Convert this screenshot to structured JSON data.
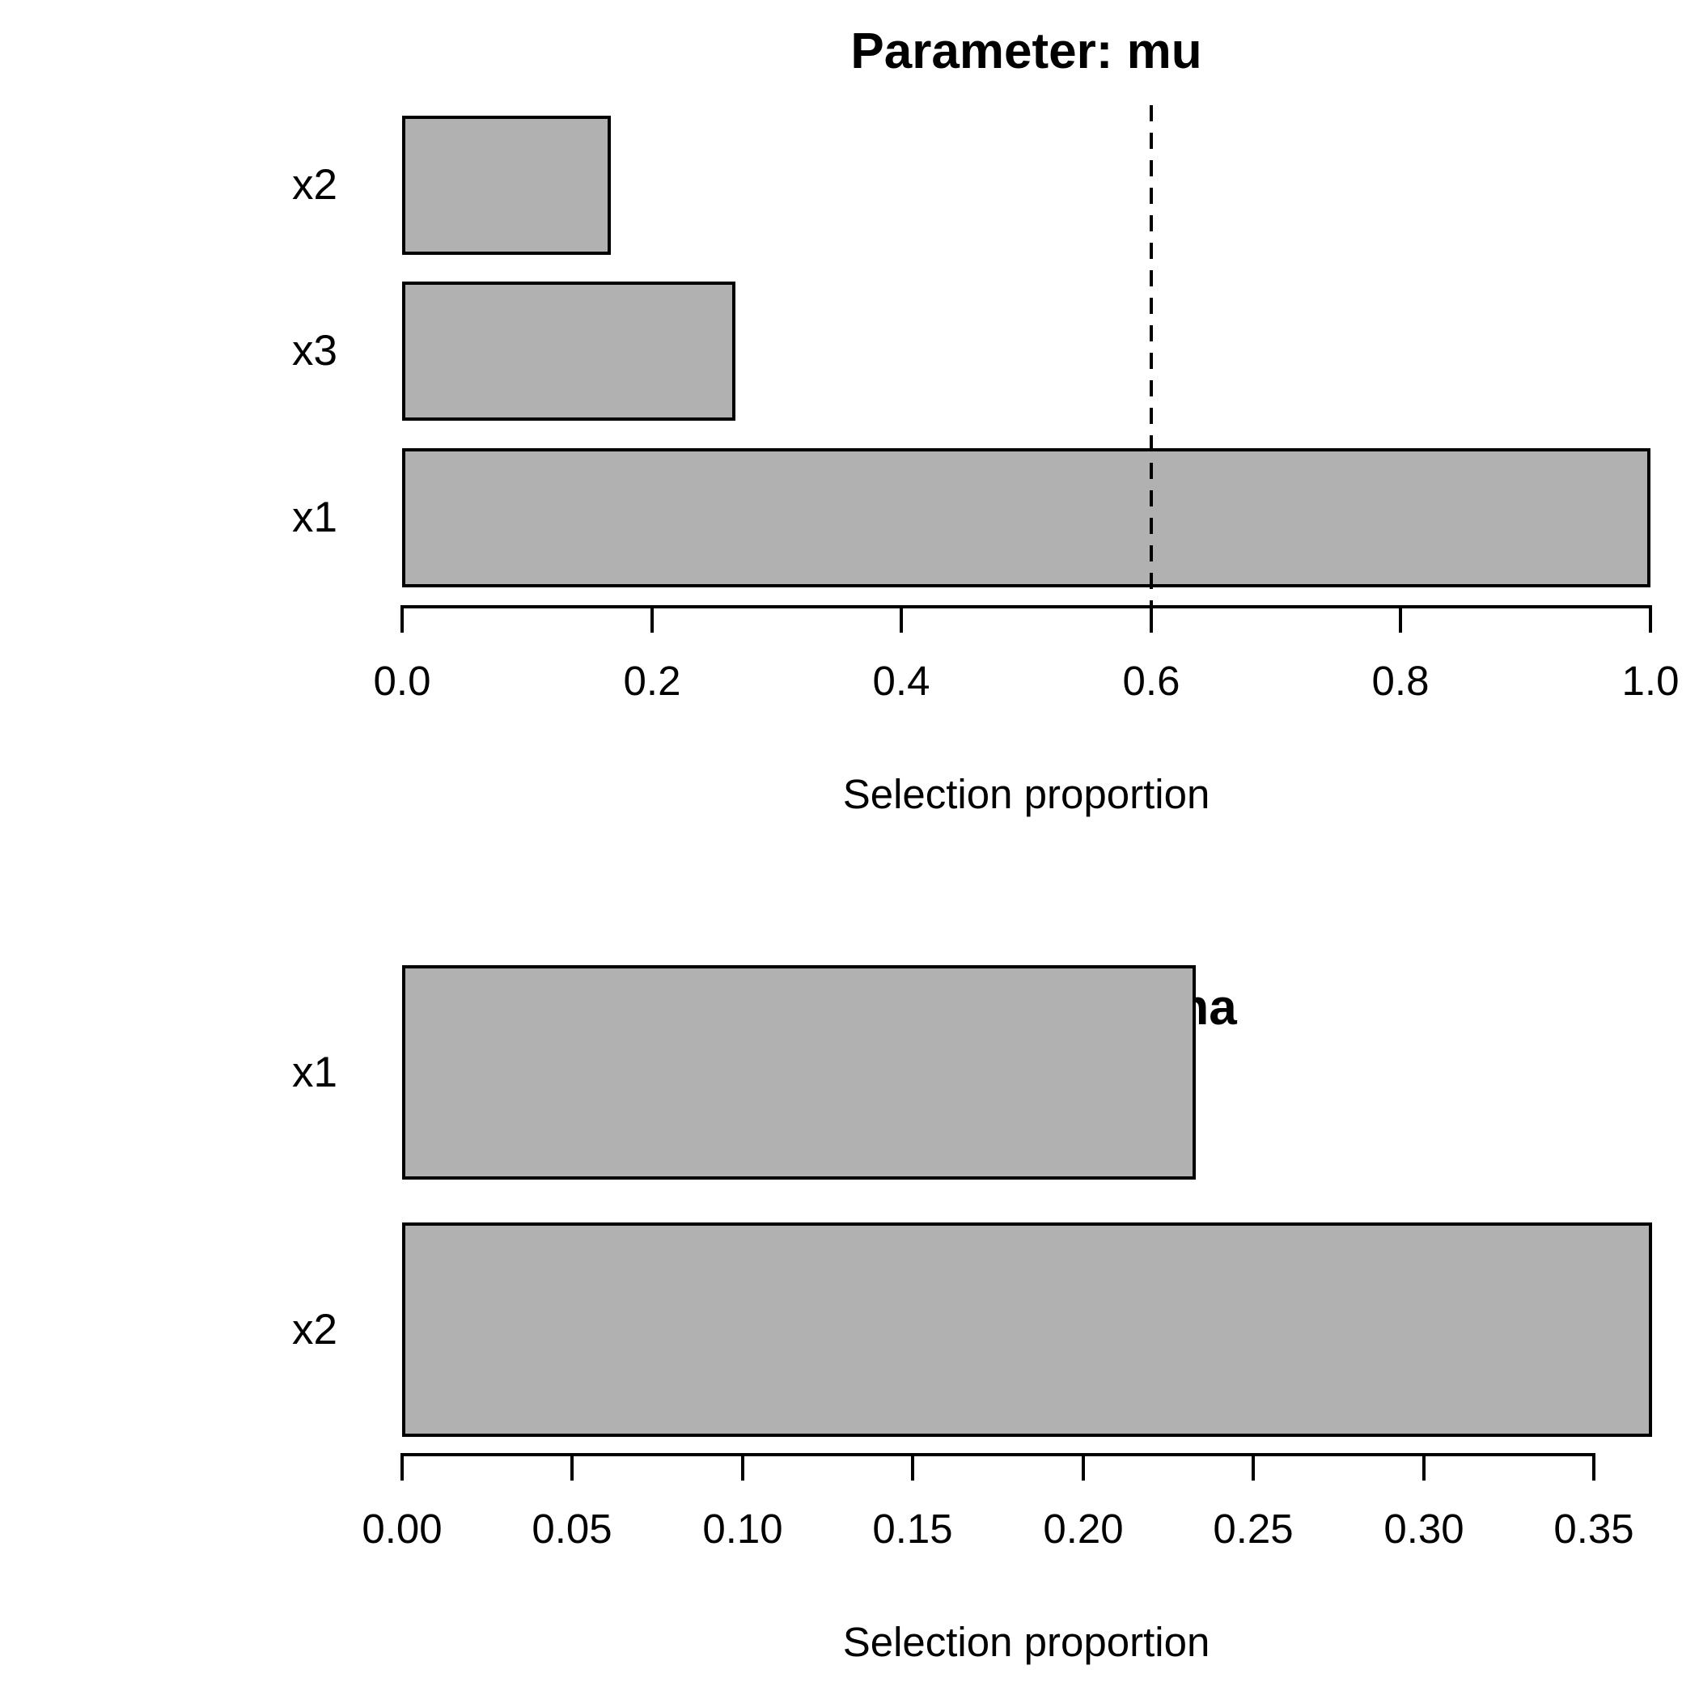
{
  "page": {
    "background": "#ffffff"
  },
  "styles": {
    "bar_fill": "#b1b1b1",
    "bar_border": "#000000",
    "text_color": "#000000"
  },
  "chart_data": [
    {
      "type": "bar",
      "orientation": "horizontal",
      "title": "Parameter: mu",
      "xlabel": "Selection proportion",
      "categories": [
        "x2",
        "x3",
        "x1"
      ],
      "values": [
        0.167,
        0.267,
        1.0
      ],
      "threshold_line": 0.6,
      "threshold_line_style": "dashed",
      "xlim": [
        0,
        1.0
      ],
      "ticks": [
        0.0,
        0.2,
        0.4,
        0.6,
        0.8,
        1.0
      ],
      "tick_labels": [
        "0.0",
        "0.2",
        "0.4",
        "0.6",
        "0.8",
        "1.0"
      ],
      "grid": false,
      "legend": null
    },
    {
      "type": "bar",
      "orientation": "horizontal",
      "title": "Parameter: sigma",
      "xlabel": "Selection proportion",
      "categories": [
        "x1",
        "x2"
      ],
      "values": [
        0.233,
        0.367
      ],
      "threshold_line": null,
      "threshold_line_style": null,
      "xlim": [
        0,
        0.367
      ],
      "ticks": [
        0.0,
        0.05,
        0.1,
        0.15,
        0.2,
        0.25,
        0.3,
        0.35
      ],
      "tick_labels": [
        "0.00",
        "0.05",
        "0.10",
        "0.15",
        "0.20",
        "0.25",
        "0.30",
        "0.35"
      ],
      "grid": false,
      "legend": null
    }
  ]
}
